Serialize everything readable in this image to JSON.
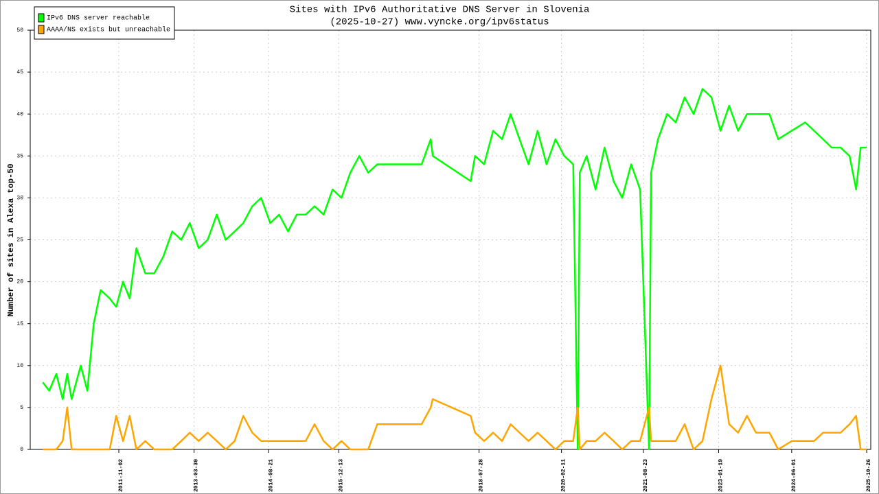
{
  "chart_data": {
    "type": "line",
    "title": "Sites with IPv6 Authoritative DNS Server in Slovenia",
    "subtitle": "(2025-10-27) www.vyncke.org/ipv6status",
    "y_label": "Number of sites in Alexa top-50",
    "legend": "upper left",
    "grid": true,
    "xlim": [
      "2010-03-07",
      "2025-11-23"
    ],
    "xticks": [
      "2011-11-02",
      "2013-03-30",
      "2014-08-21",
      "2015-12-13",
      "2018-07-28",
      "2020-02-11",
      "2021-08-23",
      "2023-01-19",
      "2024-06-01",
      "2025-10-26"
    ],
    "ylim": [
      0,
      50
    ],
    "yticks": [
      0,
      5,
      10,
      15,
      20,
      25,
      30,
      35,
      40,
      45,
      50
    ],
    "x": [
      "2010-06-01",
      "2010-07-15",
      "2010-09-01",
      "2010-10-15",
      "2010-11-15",
      "2010-12-15",
      "2011-02-15",
      "2011-04-01",
      "2011-05-15",
      "2011-07-01",
      "2011-09-01",
      "2011-10-15",
      "2011-12-01",
      "2012-01-15",
      "2012-03-01",
      "2012-05-01",
      "2012-07-01",
      "2012-09-01",
      "2012-11-01",
      "2013-01-01",
      "2013-03-01",
      "2013-05-01",
      "2013-07-01",
      "2013-09-01",
      "2013-11-01",
      "2014-01-01",
      "2014-03-01",
      "2014-05-01",
      "2014-07-01",
      "2014-09-01",
      "2014-11-01",
      "2015-01-01",
      "2015-03-01",
      "2015-05-01",
      "2015-07-01",
      "2015-09-01",
      "2015-11-01",
      "2016-01-01",
      "2016-03-01",
      "2016-05-01",
      "2016-07-01",
      "2016-09-01",
      "2017-01-01",
      "2017-07-01",
      "2017-09-01",
      "2017-09-15",
      "2018-06-01",
      "2018-07-01",
      "2018-09-01",
      "2018-11-01",
      "2019-01-01",
      "2019-03-01",
      "2019-05-01",
      "2019-07-01",
      "2019-09-01",
      "2019-11-01",
      "2020-01-01",
      "2020-03-01",
      "2020-05-01",
      "2020-06-01",
      "2020-06-15",
      "2020-08-01",
      "2020-10-01",
      "2020-12-01",
      "2021-02-01",
      "2021-04-01",
      "2021-06-01",
      "2021-08-01",
      "2021-10-01",
      "2021-10-15",
      "2021-12-01",
      "2022-02-01",
      "2022-04-01",
      "2022-06-01",
      "2022-08-01",
      "2022-10-01",
      "2022-12-01",
      "2023-02-01",
      "2023-04-01",
      "2023-06-01",
      "2023-08-01",
      "2023-10-01",
      "2024-01-01",
      "2024-03-01",
      "2024-06-01",
      "2024-09-01",
      "2024-11-01",
      "2025-01-01",
      "2025-03-01",
      "2025-05-01",
      "2025-07-01",
      "2025-08-15",
      "2025-09-15",
      "2025-10-26"
    ],
    "series": [
      {
        "name": "IPv6 DNS server reachable",
        "color": "#00ff00",
        "values": [
          8,
          7,
          9,
          6,
          9,
          6,
          10,
          7,
          15,
          19,
          18,
          17,
          20,
          18,
          24,
          21,
          21,
          23,
          26,
          25,
          27,
          24,
          25,
          28,
          25,
          26,
          27,
          29,
          30,
          27,
          28,
          26,
          28,
          28,
          29,
          28,
          31,
          30,
          33,
          35,
          33,
          34,
          34,
          34,
          37,
          35,
          32,
          35,
          34,
          38,
          37,
          40,
          37,
          34,
          38,
          34,
          37,
          35,
          34,
          0,
          33,
          35,
          31,
          36,
          32,
          30,
          34,
          31,
          0,
          33,
          37,
          40,
          39,
          42,
          40,
          43,
          42,
          38,
          41,
          38,
          40,
          40,
          40,
          37,
          38,
          39,
          38,
          37,
          36,
          36,
          35,
          31,
          36,
          36
        ]
      },
      {
        "name": "AAAA/NS exists but unreachable",
        "color": "#ffa500",
        "values": [
          0,
          0,
          0,
          1,
          5,
          0,
          0,
          0,
          0,
          0,
          0,
          4,
          1,
          4,
          0,
          1,
          0,
          0,
          0,
          1,
          2,
          1,
          2,
          1,
          0,
          1,
          4,
          2,
          1,
          1,
          1,
          1,
          1,
          1,
          3,
          1,
          0,
          1,
          0,
          0,
          0,
          3,
          3,
          3,
          5,
          6,
          4,
          2,
          1,
          2,
          1,
          3,
          2,
          1,
          2,
          1,
          0,
          1,
          1,
          5,
          0,
          1,
          1,
          2,
          1,
          0,
          1,
          1,
          5,
          1,
          1,
          1,
          1,
          3,
          0,
          1,
          6,
          10,
          3,
          2,
          4,
          2,
          2,
          0,
          1,
          1,
          1,
          2,
          2,
          2,
          3,
          4,
          0,
          0
        ]
      }
    ]
  }
}
